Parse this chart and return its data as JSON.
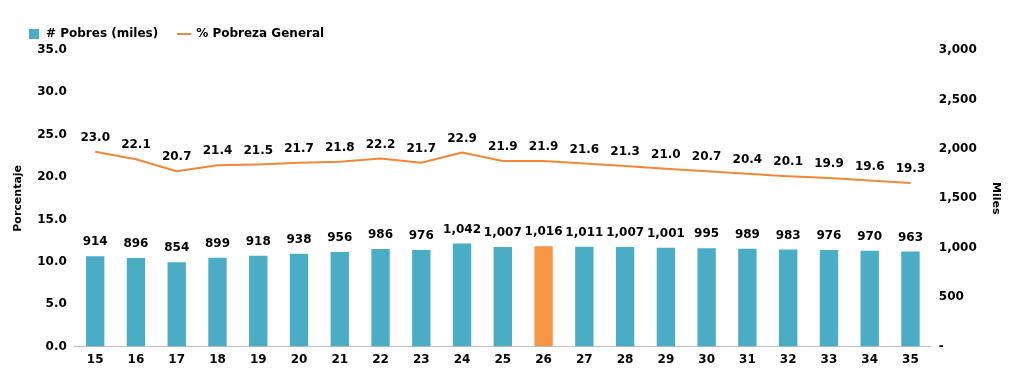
{
  "chart_data": {
    "type": "bar",
    "xlabel": null,
    "ylabel": "Porcentaje",
    "y2label": "Miles",
    "categories": [
      "15",
      "16",
      "17",
      "18",
      "19",
      "20",
      "21",
      "22",
      "23",
      "24",
      "25",
      "26",
      "27",
      "28",
      "29",
      "30",
      "31",
      "32",
      "33",
      "34",
      "35"
    ],
    "series": [
      {
        "name": "# Pobres (miles)",
        "axis": "y2",
        "color": "#4bacc6",
        "colors": [
          "#4bacc6",
          "#4bacc6",
          "#4bacc6",
          "#4bacc6",
          "#4bacc6",
          "#4bacc6",
          "#4bacc6",
          "#4bacc6",
          "#4bacc6",
          "#4bacc6",
          "#4bacc6",
          "#f79646",
          "#4bacc6",
          "#4bacc6",
          "#4bacc6",
          "#4bacc6",
          "#4bacc6",
          "#4bacc6",
          "#4bacc6",
          "#4bacc6",
          "#4bacc6"
        ],
        "values": [
          914,
          896,
          854,
          899,
          918,
          938,
          956,
          986,
          976,
          1042,
          1007,
          1016,
          1011,
          1007,
          1001,
          995,
          989,
          983,
          976,
          970,
          963
        ],
        "value_labels": [
          "914",
          "896",
          "854",
          "899",
          "918",
          "938",
          "956",
          "986",
          "976",
          "1,042",
          "1,007",
          "1,016",
          "1,011",
          "1,007",
          "1,001",
          "995",
          "989",
          "983",
          "976",
          "970",
          "963"
        ]
      },
      {
        "name": "% Pobreza General",
        "type": "line",
        "color": "#f0883a",
        "values": [
          23.0,
          22.1,
          20.7,
          21.4,
          21.5,
          21.7,
          21.8,
          22.2,
          21.7,
          22.9,
          21.9,
          21.9,
          21.6,
          21.3,
          21.0,
          20.7,
          20.4,
          20.1,
          19.9,
          19.6,
          19.3
        ],
        "value_labels": [
          "23.0",
          "22.1",
          "20.7",
          "21.4",
          "21.5",
          "21.7",
          "21.8",
          "22.2",
          "21.7",
          "22.9",
          "21.9",
          "21.9",
          "21.6",
          "21.3",
          "21.0",
          "20.7",
          "20.4",
          "20.1",
          "19.9",
          "19.6",
          "19.3"
        ]
      }
    ],
    "ylim": [
      0,
      35
    ],
    "yticks": [
      {
        "value": 0,
        "label": "0.0"
      },
      {
        "value": 5,
        "label": "5.0"
      },
      {
        "value": 10,
        "label": "10.0"
      },
      {
        "value": 15,
        "label": "15.0"
      },
      {
        "value": 20,
        "label": "20.0"
      },
      {
        "value": 25,
        "label": "25.0"
      },
      {
        "value": 30,
        "label": "30.0"
      },
      {
        "value": 35,
        "label": "35.0"
      }
    ],
    "y2lim": [
      0,
      3000
    ],
    "y2ticks": [
      {
        "value": 0,
        "label": "-"
      },
      {
        "value": 500,
        "label": "500"
      },
      {
        "value": 1000,
        "label": "1,000"
      },
      {
        "value": 1500,
        "label": "1,500"
      },
      {
        "value": 2000,
        "label": "2,000"
      },
      {
        "value": 2500,
        "label": "2,500"
      },
      {
        "value": 3000,
        "label": "3,000"
      }
    ],
    "legend": "top left",
    "grid": false,
    "marker": "none",
    "line_style": "solid"
  }
}
